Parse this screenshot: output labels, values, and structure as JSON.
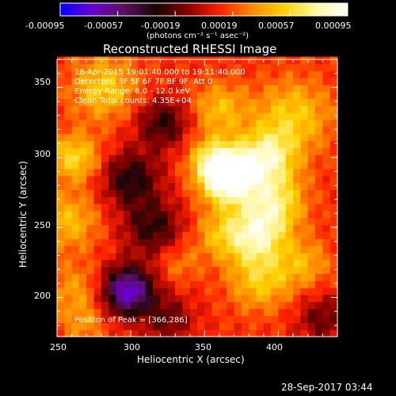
{
  "chart_data": {
    "type": "heatmap",
    "title": "Reconstructed RHESSI Image",
    "xlabel": "Heliocentric X (arcsec)",
    "ylabel": "Heliocentric Y (arcsec)",
    "xlim": [
      250,
      440
    ],
    "ylim": [
      172,
      370
    ],
    "xticks": [
      "250",
      "300",
      "350",
      "400"
    ],
    "yticks": [
      "200",
      "250",
      "300",
      "350"
    ],
    "colorbar": {
      "ticks": [
        "-0.00095",
        "-0.00057",
        "-0.00019",
        "0.00019",
        "0.00057",
        "0.00095"
      ],
      "unit": "(photons cm⁻² s⁻¹ asec⁻²)",
      "range": [
        -0.00095,
        0.00095
      ],
      "colors": [
        "#0000ff",
        "#6a00d0",
        "#5a1060",
        "#1a0505",
        "#8a0000",
        "#ff2000",
        "#ff8a00",
        "#ffd000",
        "#fff7a0",
        "#ffffff"
      ]
    },
    "info_lines": [
      "18-Apr-2015 19:01:40.000 to 19:11:40.000",
      "Detectors: 3F 5F 6F 7F 8F 9F, Att 0",
      "Energy Range: 6.0 - 12.0 keV",
      "Clean    Total counts: 4.35E+04"
    ],
    "peak_label": "Position of Peak = [366,286]",
    "peak": [
      366,
      286
    ],
    "features": [
      {
        "x": 366,
        "y": 286,
        "sigma": 13,
        "amp": 0.001
      },
      {
        "x": 392,
        "y": 300,
        "sigma": 14,
        "amp": 0.0006
      },
      {
        "x": 355,
        "y": 300,
        "sigma": 11,
        "amp": 0.0004
      },
      {
        "x": 385,
        "y": 245,
        "sigma": 14,
        "amp": 0.0006
      },
      {
        "x": 398,
        "y": 268,
        "sigma": 14,
        "amp": 0.0005
      },
      {
        "x": 360,
        "y": 245,
        "sigma": 12,
        "amp": 0.0003
      },
      {
        "x": 360,
        "y": 335,
        "sigma": 13,
        "amp": 0.00035
      },
      {
        "x": 410,
        "y": 330,
        "sigma": 18,
        "amp": 0.0004
      },
      {
        "x": 388,
        "y": 213,
        "sigma": 15,
        "amp": 0.0004
      },
      {
        "x": 418,
        "y": 225,
        "sigma": 12,
        "amp": 0.00028
      },
      {
        "x": 282,
        "y": 350,
        "sigma": 16,
        "amp": 0.0004
      },
      {
        "x": 262,
        "y": 300,
        "sigma": 12,
        "amp": 0.00045
      },
      {
        "x": 258,
        "y": 255,
        "sigma": 14,
        "amp": 0.00035
      },
      {
        "x": 262,
        "y": 205,
        "sigma": 14,
        "amp": 0.00025
      },
      {
        "x": 268,
        "y": 180,
        "sigma": 10,
        "amp": 0.0002
      },
      {
        "x": 333,
        "y": 225,
        "sigma": 10,
        "amp": 0.00018
      },
      {
        "x": 298,
        "y": 205,
        "sigma": 12,
        "amp": -0.0009
      },
      {
        "x": 300,
        "y": 285,
        "sigma": 14,
        "amp": -0.00045
      },
      {
        "x": 315,
        "y": 250,
        "sigma": 14,
        "amp": -0.0004
      },
      {
        "x": 322,
        "y": 325,
        "sigma": 13,
        "amp": -0.0004
      },
      {
        "x": 325,
        "y": 185,
        "sigma": 12,
        "amp": -0.0003
      },
      {
        "x": 430,
        "y": 185,
        "sigma": 12,
        "amp": -0.0003
      }
    ]
  },
  "footer": {
    "timestamp": "28-Sep-2017 03:44"
  }
}
